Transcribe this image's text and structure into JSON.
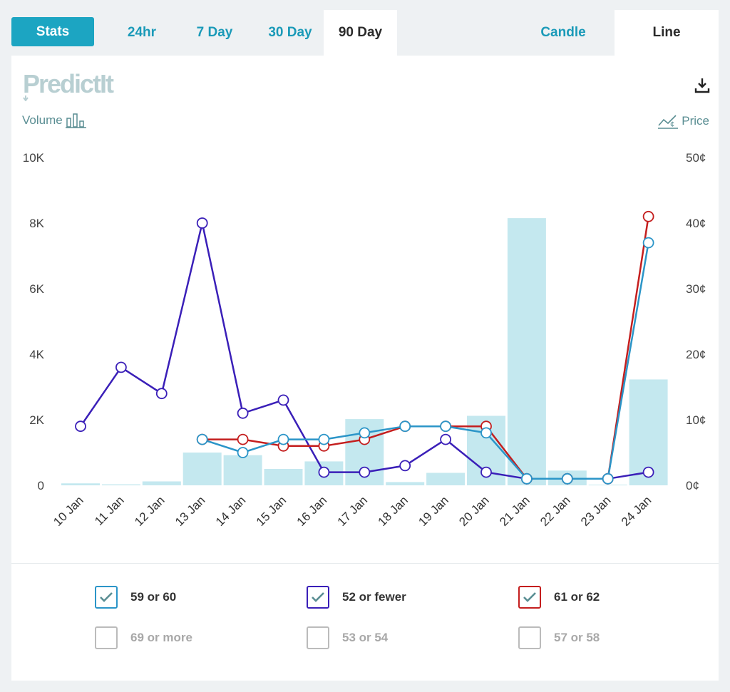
{
  "tabs": {
    "stats": "Stats",
    "range": [
      "24hr",
      "7 Day",
      "30 Day",
      "90 Day"
    ],
    "active_range": "90 Day",
    "view": [
      "Candle",
      "Line"
    ],
    "active_view": "Line"
  },
  "logo_text": "PredictIt",
  "axis": {
    "left_title": "Volume",
    "right_title": "Price",
    "left_ticks": [
      "0",
      "2K",
      "4K",
      "6K",
      "8K",
      "10K"
    ],
    "right_ticks": [
      "0¢",
      "10¢",
      "20¢",
      "30¢",
      "40¢",
      "50¢"
    ]
  },
  "colors": {
    "accent": "#1ca5c2",
    "volume_bar": "#c4e8ef",
    "series_59_60": "#2b95c8",
    "series_52_fewer": "#3a1fb8",
    "series_61_62": "#c41e1e",
    "off": "#bbbbbb"
  },
  "chart_data": {
    "type": "line",
    "x": [
      "10 Jan",
      "11 Jan",
      "12 Jan",
      "13 Jan",
      "14 Jan",
      "15 Jan",
      "16 Jan",
      "17 Jan",
      "18 Jan",
      "19 Jan",
      "20 Jan",
      "21 Jan",
      "22 Jan",
      "23 Jan",
      "24 Jan"
    ],
    "volume": [
      60,
      30,
      120,
      1000,
      920,
      500,
      730,
      2020,
      100,
      380,
      2120,
      8150,
      450,
      20,
      3230
    ],
    "volume_ylim": [
      0,
      10000
    ],
    "price_ylim": [
      0,
      50
    ],
    "series": [
      {
        "name": "52 or fewer",
        "color": "#3a1fb8",
        "values": [
          9,
          18,
          14,
          40,
          11,
          13,
          2,
          2,
          3,
          7,
          2,
          1,
          1,
          1,
          2
        ]
      },
      {
        "name": "61 or 62",
        "color": "#c41e1e",
        "values": [
          null,
          null,
          null,
          7,
          7,
          6,
          6,
          7,
          9,
          9,
          9,
          1,
          1,
          1,
          41
        ]
      },
      {
        "name": "59 or 60",
        "color": "#2b95c8",
        "values": [
          null,
          null,
          null,
          7,
          5,
          7,
          7,
          8,
          9,
          9,
          8,
          1,
          1,
          1,
          37
        ]
      }
    ]
  },
  "legend": [
    {
      "label": "59 or 60",
      "checked": true,
      "color": "#2b95c8"
    },
    {
      "label": "52 or fewer",
      "checked": true,
      "color": "#3a1fb8"
    },
    {
      "label": "61 or 62",
      "checked": true,
      "color": "#c41e1e"
    },
    {
      "label": "69 or more",
      "checked": false,
      "color": "#bbbbbb"
    },
    {
      "label": "53 or 54",
      "checked": false,
      "color": "#bbbbbb"
    },
    {
      "label": "57 or 58",
      "checked": false,
      "color": "#bbbbbb"
    }
  ]
}
